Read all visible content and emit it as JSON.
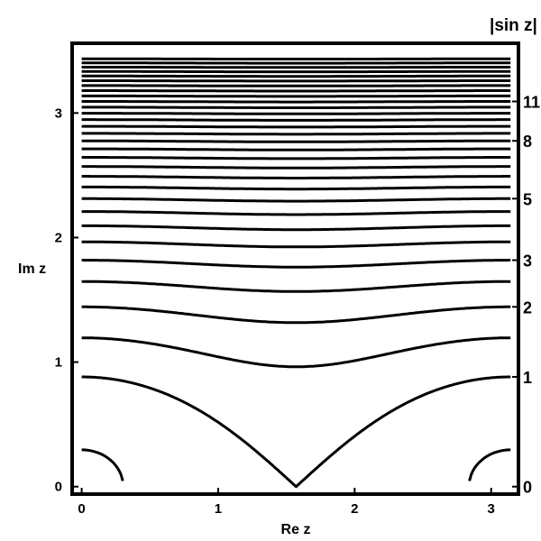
{
  "chart_data": {
    "type": "line",
    "title": "",
    "xlabel": "Re z",
    "ylabel": "Im z",
    "right_axis_title": "|sin z|",
    "xlim": [
      -0.07,
      3.2
    ],
    "ylim": [
      -0.06,
      3.56
    ],
    "x_ticks": [
      {
        "value": 0,
        "label": "0"
      },
      {
        "value": 1,
        "label": "1"
      },
      {
        "value": 2,
        "label": "2"
      },
      {
        "value": 3,
        "label": "3"
      }
    ],
    "y_ticks": [
      {
        "value": 0,
        "label": "0"
      },
      {
        "value": 1,
        "label": "1"
      },
      {
        "value": 2,
        "label": "2"
      },
      {
        "value": 3,
        "label": "3"
      }
    ],
    "right_labels": [
      {
        "value": 0,
        "label": "0"
      },
      {
        "value": 1,
        "label": "1"
      },
      {
        "value": 2,
        "label": "2"
      },
      {
        "value": 3,
        "label": "3"
      },
      {
        "value": 5,
        "label": "5"
      },
      {
        "value": 8,
        "label": "8"
      },
      {
        "value": 11,
        "label": "11"
      }
    ],
    "contour_levels": [
      0.3,
      1.0,
      1.5,
      2.0,
      2.5,
      3.0,
      3.5,
      4.0,
      4.5,
      5.0,
      5.5,
      6.0,
      6.5,
      7.0,
      7.5,
      8.0,
      8.5,
      9.0,
      9.5,
      10.0,
      10.5,
      11.0,
      11.5,
      12.0,
      12.5,
      13.0,
      13.5,
      14.0,
      14.5,
      15.0,
      15.5
    ],
    "function": "|sin z|",
    "grid": false,
    "legend": "none",
    "line_color": "#000000"
  }
}
